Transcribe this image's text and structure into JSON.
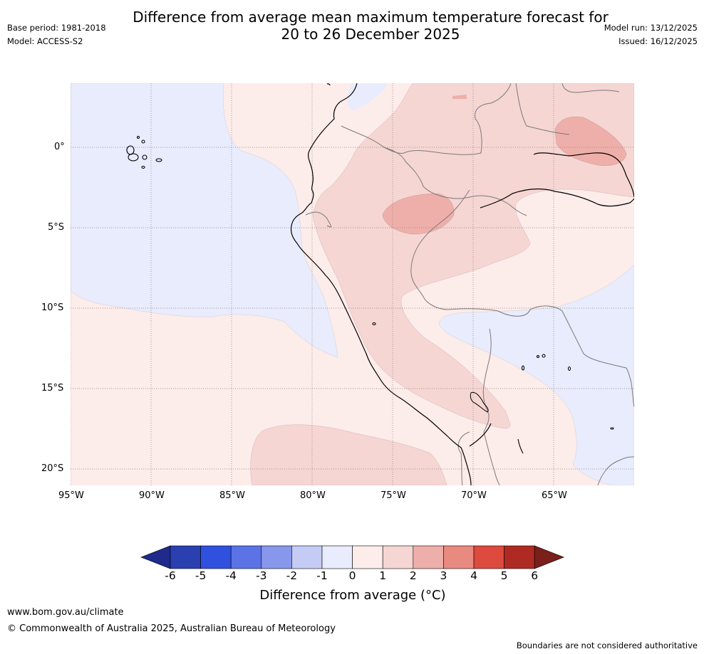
{
  "header": {
    "title_line1": "Difference from average mean maximum temperature forecast for",
    "title_line2": "20 to 26 December 2025",
    "base_period": "Base period: 1981-2018",
    "model": "Model: ACCESS-S2",
    "model_run": "Model run: 13/12/2025",
    "issued": "Issued: 16/12/2025"
  },
  "map": {
    "lat_labels": [
      "0°",
      "5°S",
      "10°S",
      "15°S",
      "20°S"
    ],
    "lon_labels": [
      "95°W",
      "90°W",
      "85°W",
      "80°W",
      "75°W",
      "70°W",
      "65°W"
    ]
  },
  "colorbar": {
    "ticks": [
      "-6",
      "-5",
      "-4",
      "-3",
      "-2",
      "-1",
      "0",
      "1",
      "2",
      "3",
      "4",
      "5",
      "6"
    ],
    "colors": [
      "#1f2a8c",
      "#2a3fb0",
      "#3050e0",
      "#5b73e6",
      "#8797ec",
      "#c4cbf4",
      "#e8ecfc",
      "#fcecea",
      "#f5d6d3",
      "#eeafaa",
      "#e88a80",
      "#dd4a3e",
      "#ae2a22",
      "#7a1f1a"
    ],
    "label": "Difference from average (°C)"
  },
  "footer": {
    "url": "www.bom.gov.au/climate",
    "copyright": "© Commonwealth of Australia 2025, Australian Bureau of Meteorology",
    "disclaimer": "Boundaries are not considered authoritative"
  }
}
